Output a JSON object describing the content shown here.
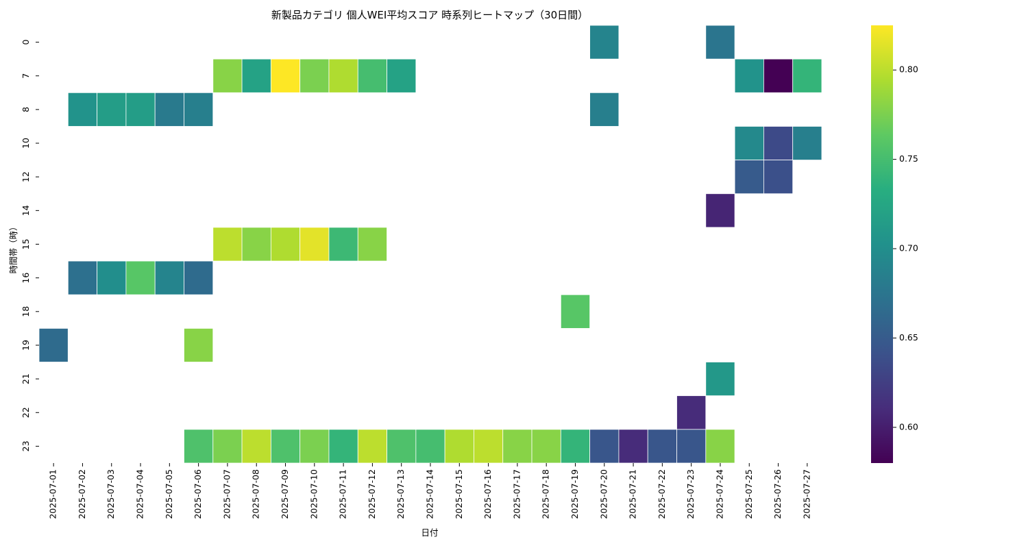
{
  "chart_data": {
    "type": "heatmap",
    "title": "新製品カテゴリ 個人WEI平均スコア 時系列ヒートマップ（30日間）",
    "xlabel": "日付",
    "ylabel": "時間帯（時）",
    "x_categories": [
      "2025-07-01",
      "2025-07-02",
      "2025-07-03",
      "2025-07-04",
      "2025-07-05",
      "2025-07-06",
      "2025-07-07",
      "2025-07-08",
      "2025-07-09",
      "2025-07-10",
      "2025-07-11",
      "2025-07-12",
      "2025-07-13",
      "2025-07-14",
      "2025-07-15",
      "2025-07-16",
      "2025-07-17",
      "2025-07-18",
      "2025-07-19",
      "2025-07-20",
      "2025-07-21",
      "2025-07-22",
      "2025-07-23",
      "2025-07-24",
      "2025-07-25",
      "2025-07-26",
      "2025-07-27"
    ],
    "y_categories": [
      "0",
      "7",
      "8",
      "10",
      "12",
      "14",
      "15",
      "16",
      "18",
      "19",
      "21",
      "22",
      "23"
    ],
    "colormap": "viridis",
    "vmin": 0.58,
    "vmax": 0.825,
    "colorbar_ticks": [
      "0.60",
      "0.65",
      "0.70",
      "0.75",
      "0.80"
    ],
    "cells": [
      {
        "x": "2025-07-20",
        "y": "0",
        "value": 0.69
      },
      {
        "x": "2025-07-24",
        "y": "0",
        "value": 0.675
      },
      {
        "x": "2025-07-07",
        "y": "7",
        "value": 0.78
      },
      {
        "x": "2025-07-08",
        "y": "7",
        "value": 0.72
      },
      {
        "x": "2025-07-09",
        "y": "7",
        "value": 0.825
      },
      {
        "x": "2025-07-10",
        "y": "7",
        "value": 0.775
      },
      {
        "x": "2025-07-11",
        "y": "7",
        "value": 0.795
      },
      {
        "x": "2025-07-12",
        "y": "7",
        "value": 0.75
      },
      {
        "x": "2025-07-13",
        "y": "7",
        "value": 0.72
      },
      {
        "x": "2025-07-25",
        "y": "7",
        "value": 0.705
      },
      {
        "x": "2025-07-26",
        "y": "7",
        "value": 0.58
      },
      {
        "x": "2025-07-27",
        "y": "7",
        "value": 0.74
      },
      {
        "x": "2025-07-02",
        "y": "8",
        "value": 0.705
      },
      {
        "x": "2025-07-03",
        "y": "8",
        "value": 0.715
      },
      {
        "x": "2025-07-04",
        "y": "8",
        "value": 0.715
      },
      {
        "x": "2025-07-05",
        "y": "8",
        "value": 0.68
      },
      {
        "x": "2025-07-06",
        "y": "8",
        "value": 0.685
      },
      {
        "x": "2025-07-20",
        "y": "8",
        "value": 0.685
      },
      {
        "x": "2025-07-25",
        "y": "10",
        "value": 0.695
      },
      {
        "x": "2025-07-26",
        "y": "10",
        "value": 0.635
      },
      {
        "x": "2025-07-27",
        "y": "10",
        "value": 0.685
      },
      {
        "x": "2025-07-25",
        "y": "12",
        "value": 0.65
      },
      {
        "x": "2025-07-26",
        "y": "12",
        "value": 0.64
      },
      {
        "x": "2025-07-24",
        "y": "14",
        "value": 0.605
      },
      {
        "x": "2025-07-07",
        "y": "15",
        "value": 0.8
      },
      {
        "x": "2025-07-08",
        "y": "15",
        "value": 0.78
      },
      {
        "x": "2025-07-09",
        "y": "15",
        "value": 0.795
      },
      {
        "x": "2025-07-10",
        "y": "15",
        "value": 0.815
      },
      {
        "x": "2025-07-11",
        "y": "15",
        "value": 0.745
      },
      {
        "x": "2025-07-12",
        "y": "15",
        "value": 0.78
      },
      {
        "x": "2025-07-02",
        "y": "16",
        "value": 0.67
      },
      {
        "x": "2025-07-03",
        "y": "16",
        "value": 0.7
      },
      {
        "x": "2025-07-04",
        "y": "16",
        "value": 0.76
      },
      {
        "x": "2025-07-05",
        "y": "16",
        "value": 0.69
      },
      {
        "x": "2025-07-06",
        "y": "16",
        "value": 0.665
      },
      {
        "x": "2025-07-19",
        "y": "18",
        "value": 0.76
      },
      {
        "x": "2025-07-01",
        "y": "19",
        "value": 0.665
      },
      {
        "x": "2025-07-06",
        "y": "19",
        "value": 0.78
      },
      {
        "x": "2025-07-24",
        "y": "21",
        "value": 0.71
      },
      {
        "x": "2025-07-23",
        "y": "22",
        "value": 0.61
      },
      {
        "x": "2025-07-06",
        "y": "23",
        "value": 0.755
      },
      {
        "x": "2025-07-07",
        "y": "23",
        "value": 0.775
      },
      {
        "x": "2025-07-08",
        "y": "23",
        "value": 0.8
      },
      {
        "x": "2025-07-09",
        "y": "23",
        "value": 0.755
      },
      {
        "x": "2025-07-10",
        "y": "23",
        "value": 0.775
      },
      {
        "x": "2025-07-11",
        "y": "23",
        "value": 0.74
      },
      {
        "x": "2025-07-12",
        "y": "23",
        "value": 0.8
      },
      {
        "x": "2025-07-13",
        "y": "23",
        "value": 0.755
      },
      {
        "x": "2025-07-14",
        "y": "23",
        "value": 0.75
      },
      {
        "x": "2025-07-15",
        "y": "23",
        "value": 0.795
      },
      {
        "x": "2025-07-16",
        "y": "23",
        "value": 0.8
      },
      {
        "x": "2025-07-17",
        "y": "23",
        "value": 0.78
      },
      {
        "x": "2025-07-18",
        "y": "23",
        "value": 0.78
      },
      {
        "x": "2025-07-19",
        "y": "23",
        "value": 0.74
      },
      {
        "x": "2025-07-20",
        "y": "23",
        "value": 0.645
      },
      {
        "x": "2025-07-21",
        "y": "23",
        "value": 0.61
      },
      {
        "x": "2025-07-22",
        "y": "23",
        "value": 0.645
      },
      {
        "x": "2025-07-23",
        "y": "23",
        "value": 0.645
      },
      {
        "x": "2025-07-24",
        "y": "23",
        "value": 0.78
      }
    ]
  }
}
